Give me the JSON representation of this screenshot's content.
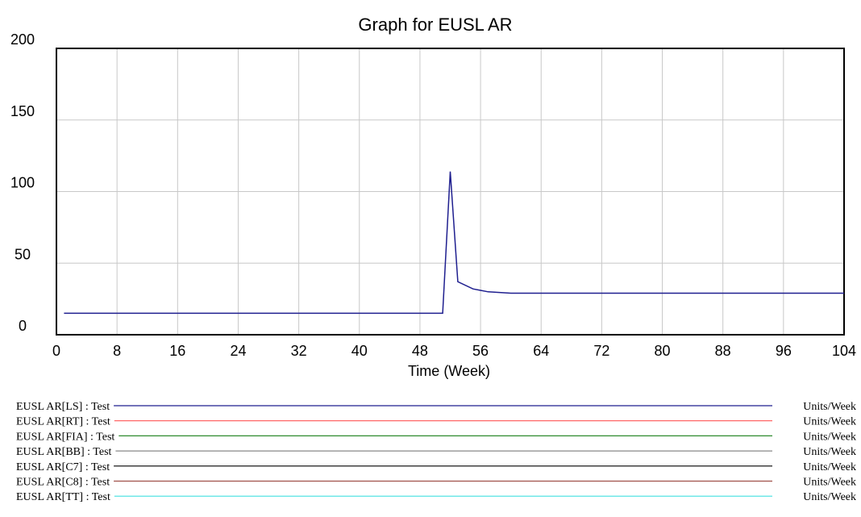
{
  "chart_data": {
    "type": "line",
    "title": "Graph for EUSL AR",
    "xlabel": "Time (Week)",
    "ylabel": "",
    "xlim": [
      0,
      104
    ],
    "ylim": [
      0,
      200
    ],
    "x_ticks": [
      "0",
      "8",
      "16",
      "24",
      "32",
      "40",
      "48",
      "56",
      "64",
      "72",
      "80",
      "88",
      "96",
      "104"
    ],
    "y_ticks": [
      "200",
      "150",
      "100",
      "50",
      "0"
    ],
    "grid": true,
    "legend_position": "bottom",
    "series": [
      {
        "name": "EUSL AR[LS] : Test",
        "unit": "Units/Week",
        "color": "#1f1f8f",
        "x": [
          1,
          51,
          52,
          53,
          55,
          56,
          57,
          60,
          104
        ],
        "y": [
          15,
          15,
          114,
          37,
          32,
          31,
          30,
          29,
          29
        ]
      },
      {
        "name": "EUSL AR[RT] : Test",
        "unit": "Units/Week",
        "color": "#ff5555",
        "x": [],
        "y": []
      },
      {
        "name": "EUSL AR[FIA] : Test",
        "unit": "Units/Week",
        "color": "#2e8b2e",
        "x": [],
        "y": []
      },
      {
        "name": "EUSL AR[BB] : Test",
        "unit": "Units/Week",
        "color": "#888888",
        "x": [],
        "y": []
      },
      {
        "name": "EUSL AR[C7] : Test",
        "unit": "Units/Week",
        "color": "#000000",
        "x": [],
        "y": []
      },
      {
        "name": "EUSL AR[C8] : Test",
        "unit": "Units/Week",
        "color": "#a0504a",
        "x": [],
        "y": []
      },
      {
        "name": "EUSL AR[TT] : Test",
        "unit": "Units/Week",
        "color": "#40e0e0",
        "x": [],
        "y": []
      }
    ]
  }
}
